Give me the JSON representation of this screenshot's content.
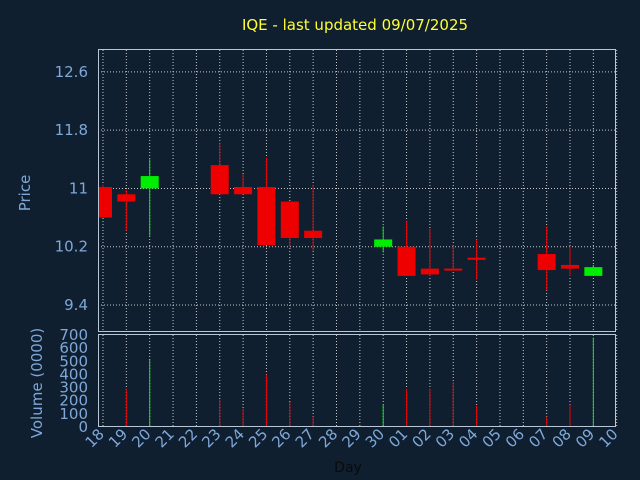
{
  "chart_data": {
    "type": "candlestick",
    "title": "IQE - last updated 09/07/2025",
    "xlabel": "Day",
    "colors": {
      "background": "#0f1f30",
      "up": "#00ee00",
      "down": "#ee0000",
      "title": "#ffff33",
      "axis_text": "#7fa8d8"
    },
    "price_panel": {
      "ylabel": "Price",
      "ylim": [
        9.03,
        12.9
      ],
      "yticks": [
        9.4,
        10.2,
        11,
        11.8,
        12.6
      ],
      "ytick_labels": [
        "9.4",
        "10.2",
        "11",
        "11.8",
        "12.6"
      ]
    },
    "volume_panel": {
      "ylabel": "Volume (0000)",
      "ylim": [
        0,
        700
      ],
      "yticks": [
        0,
        100,
        200,
        300,
        400,
        500,
        600,
        700
      ],
      "ytick_labels": [
        "0",
        "100",
        "200",
        "300",
        "400",
        "500",
        "600",
        "700"
      ]
    },
    "x_tick_labels": [
      "18",
      "19",
      "20",
      "21",
      "22",
      "23",
      "24",
      "25",
      "26",
      "27",
      "28",
      "29",
      "30",
      "01",
      "02",
      "03",
      "04",
      "05",
      "06",
      "07",
      "08",
      "09",
      "10"
    ],
    "candles": [
      {
        "date": "2025-06-18",
        "open": 11.02,
        "high": 11.05,
        "low": 10.6,
        "close": 10.6
      },
      {
        "date": "2025-06-19",
        "open": 10.92,
        "high": 10.98,
        "low": 10.42,
        "close": 10.82
      },
      {
        "date": "2025-06-20",
        "open": 11.0,
        "high": 11.4,
        "low": 10.35,
        "close": 11.17
      },
      {
        "date": "2025-06-23",
        "open": 11.32,
        "high": 11.62,
        "low": 10.92,
        "close": 10.92
      },
      {
        "date": "2025-06-24",
        "open": 11.02,
        "high": 11.2,
        "low": 10.92,
        "close": 10.92
      },
      {
        "date": "2025-06-25",
        "open": 11.02,
        "high": 11.42,
        "low": 10.22,
        "close": 10.22
      },
      {
        "date": "2025-06-26",
        "open": 10.82,
        "high": 10.82,
        "low": 10.2,
        "close": 10.32
      },
      {
        "date": "2025-06-27",
        "open": 10.42,
        "high": 11.05,
        "low": 10.15,
        "close": 10.32
      },
      {
        "date": "2025-06-30",
        "open": 10.2,
        "high": 10.48,
        "low": 10.12,
        "close": 10.3
      },
      {
        "date": "2025-07-01",
        "open": 10.2,
        "high": 10.55,
        "low": 9.8,
        "close": 9.8
      },
      {
        "date": "2025-07-02",
        "open": 9.9,
        "high": 10.45,
        "low": 9.8,
        "close": 9.82
      },
      {
        "date": "2025-07-03",
        "open": 9.9,
        "high": 10.22,
        "low": 9.88,
        "close": 9.88
      },
      {
        "date": "2025-07-04",
        "open": 10.05,
        "high": 10.3,
        "low": 9.75,
        "close": 10.02
      },
      {
        "date": "2025-07-07",
        "open": 10.1,
        "high": 10.48,
        "low": 9.6,
        "close": 9.88
      },
      {
        "date": "2025-07-08",
        "open": 9.95,
        "high": 10.2,
        "low": 9.8,
        "close": 9.9
      },
      {
        "date": "2025-07-09",
        "open": 9.8,
        "high": 9.95,
        "low": 9.8,
        "close": 9.92
      }
    ],
    "volume": [
      {
        "date": "2025-06-18",
        "value": 0
      },
      {
        "date": "2025-06-19",
        "value": 290,
        "direction": "down"
      },
      {
        "date": "2025-06-20",
        "value": 510,
        "direction": "up"
      },
      {
        "date": "2025-06-23",
        "value": 210,
        "direction": "down"
      },
      {
        "date": "2025-06-24",
        "value": 140,
        "direction": "down"
      },
      {
        "date": "2025-06-25",
        "value": 400,
        "direction": "down"
      },
      {
        "date": "2025-06-26",
        "value": 190,
        "direction": "down"
      },
      {
        "date": "2025-06-27",
        "value": 80,
        "direction": "down"
      },
      {
        "date": "2025-06-30",
        "value": 170,
        "direction": "up"
      },
      {
        "date": "2025-07-01",
        "value": 290,
        "direction": "down"
      },
      {
        "date": "2025-07-02",
        "value": 290,
        "direction": "down"
      },
      {
        "date": "2025-07-03",
        "value": 340,
        "direction": "down"
      },
      {
        "date": "2025-07-04",
        "value": 160,
        "direction": "down"
      },
      {
        "date": "2025-07-07",
        "value": 80,
        "direction": "down"
      },
      {
        "date": "2025-07-08",
        "value": 170,
        "direction": "down"
      },
      {
        "date": "2025-07-09",
        "value": 680,
        "direction": "up"
      }
    ],
    "grid": true
  }
}
